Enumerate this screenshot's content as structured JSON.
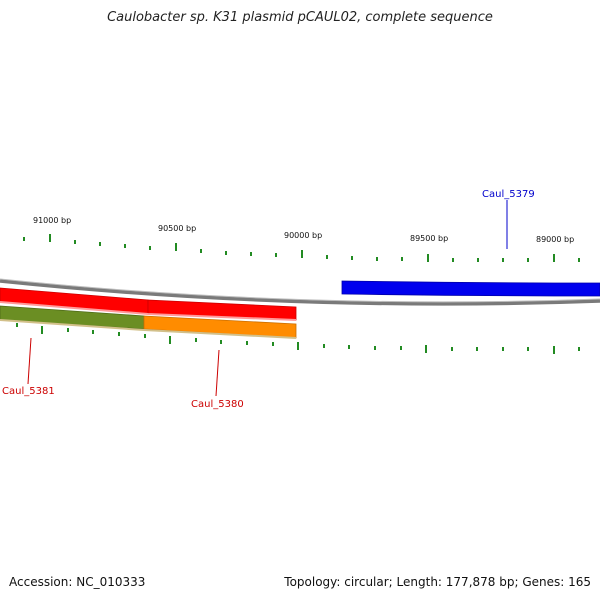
{
  "title": "Caulobacter sp. K31 plasmid pCAUL02, complete sequence",
  "footer": {
    "accession": "Accession: NC_010333",
    "summary": "Topology: circular; Length: 177,878 bp; Genes: 165"
  },
  "scale_labels": [
    {
      "label": "91000 bp"
    },
    {
      "label": "90500 bp"
    },
    {
      "label": "90000 bp"
    },
    {
      "label": "89500 bp"
    },
    {
      "label": "89000 bp"
    }
  ],
  "genes": [
    {
      "name": "Caul_5379",
      "color": "#0000ee",
      "track": "forward"
    },
    {
      "name": "Caul_5380",
      "color": "#ff8c00",
      "track": "reverse"
    },
    {
      "name": "Caul_5381",
      "color": "#6b8e23",
      "track": "reverse"
    }
  ],
  "features": [
    {
      "color": "#ff0000",
      "track": "reverse-outer"
    },
    {
      "color": "#ff0000",
      "track": "reverse-outer"
    }
  ],
  "colors": {
    "backbone": "#888888",
    "ticks": "#228b22",
    "forward_label": "#0000cc",
    "reverse_label": "#cc0000"
  }
}
